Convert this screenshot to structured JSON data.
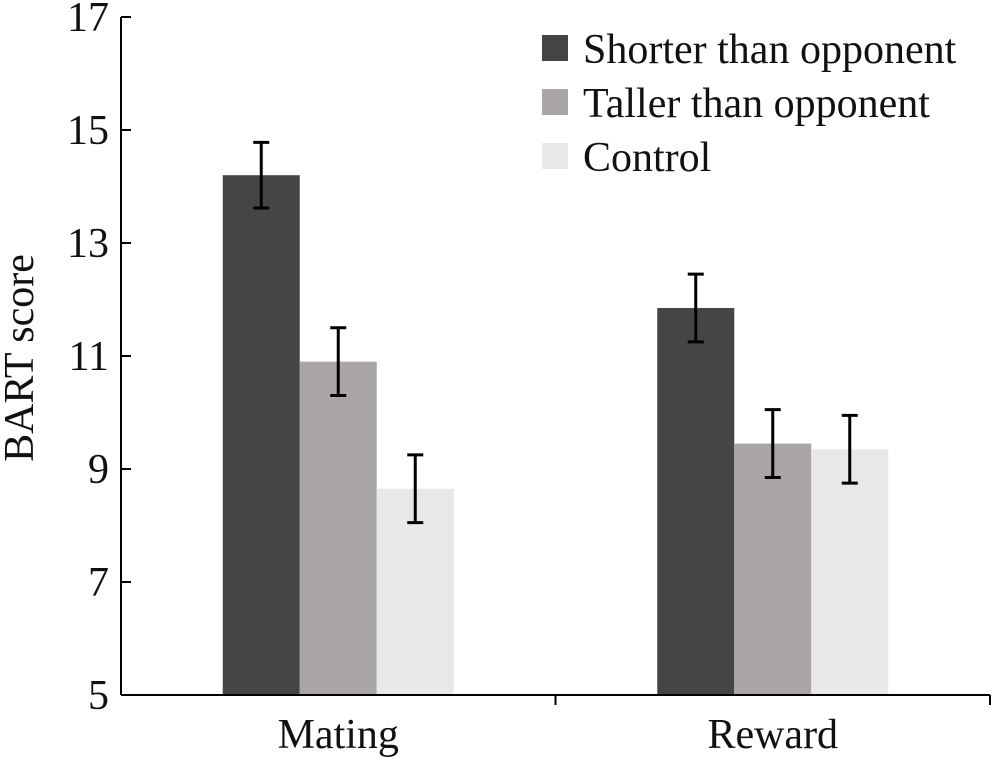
{
  "chart_data": {
    "type": "bar",
    "title": "",
    "xlabel": "",
    "ylabel": "BART score",
    "ylim": [
      5,
      17
    ],
    "yticks": [
      5,
      7,
      9,
      11,
      13,
      15,
      17
    ],
    "categories": [
      "Mating",
      "Reward"
    ],
    "series": [
      {
        "name": "Shorter than opponent",
        "color": "#454545",
        "values": [
          14.2,
          11.85
        ],
        "errors": [
          0.58,
          0.6
        ]
      },
      {
        "name": "Taller than opponent",
        "color": "#aaa6a8",
        "values": [
          10.9,
          9.45
        ],
        "errors": [
          0.6,
          0.6
        ]
      },
      {
        "name": "Control",
        "color": "#e8e8e8",
        "values": [
          8.65,
          9.35
        ],
        "errors": [
          0.6,
          0.6
        ]
      }
    ],
    "legend_position": "top-right",
    "grid": false
  }
}
